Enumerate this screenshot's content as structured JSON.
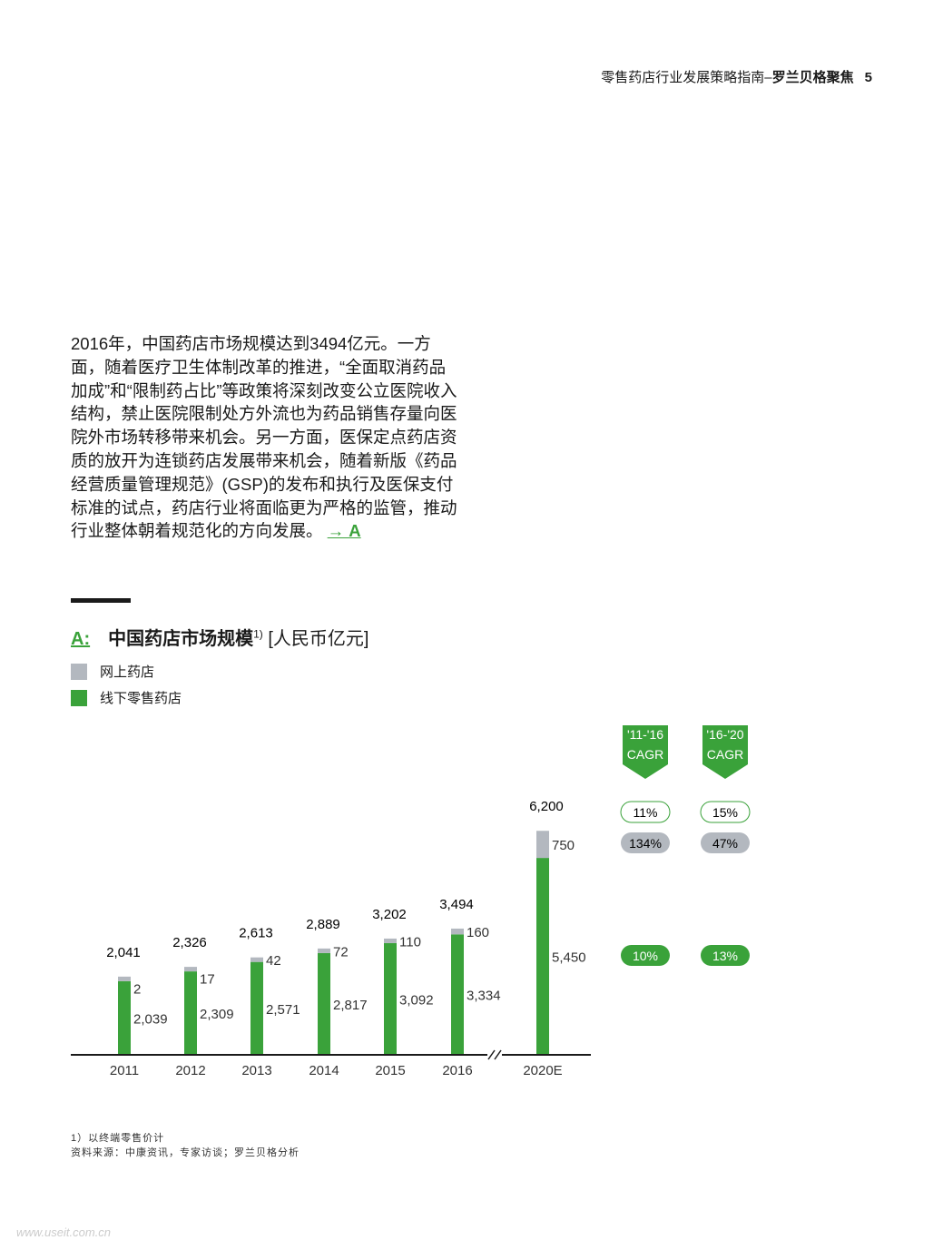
{
  "header": {
    "title": "零售药店行业发展策略指南–",
    "brand": "罗兰贝格聚焦",
    "page_number": "5"
  },
  "body_text": "2016年，中国药店市场规模达到3494亿元。一方面，随着医疗卫生体制改革的推进，“全面取消药品加成”和“限制药占比”等政策将深刻改变公立医院收入结构，禁止医院限制处方外流也为药品销售存量向医院外市场转移带来机会。另一方面，医保定点药店资质的放开为连锁药店发展带来机会，随着新版《药品经营质量管理规范》(GSP)的发布和执行及医保支付标准的试点，药店行业将面临更为严格的监管，推动行业整体朝着规范化的方向发展。",
  "body_link": "→ A",
  "footnotes": [
    "1）以终端零售价计",
    "资料来源：中康资讯，专家访谈；罗兰贝格分析"
  ],
  "watermark": "www.useit.com.cn",
  "chart_data": {
    "type": "bar",
    "stacked": true,
    "label": "A:",
    "title": "中国药店市场规模",
    "title_sup": "1)",
    "unit": "[人民币亿元]",
    "categories": [
      "2011",
      "2012",
      "2013",
      "2014",
      "2015",
      "2016",
      "2020E"
    ],
    "series": [
      {
        "name": "线下零售药店",
        "color": "#3aa23a",
        "values": [
          2039,
          2309,
          2571,
          2817,
          3092,
          3334,
          5450
        ],
        "labels": [
          "2,039",
          "2,309",
          "2,571",
          "2,817",
          "3,092",
          "3,334",
          "5,450"
        ]
      },
      {
        "name": "网上药店",
        "color": "#b3b8bf",
        "values": [
          2,
          17,
          42,
          72,
          110,
          160,
          750
        ],
        "labels": [
          "2",
          "17",
          "42",
          "72",
          "110",
          "160",
          "750"
        ]
      }
    ],
    "totals": [
      "2,041",
      "2,326",
      "2,613",
      "2,889",
      "3,202",
      "3,494",
      "6,200"
    ],
    "axis_break_before": "2020E",
    "cagr": [
      {
        "period": "'11-'16",
        "label": "CAGR",
        "total": "11%",
        "online": "134%",
        "offline": "10%"
      },
      {
        "period": "'16-'20",
        "label": "CAGR",
        "total": "15%",
        "online": "47%",
        "offline": "13%"
      }
    ],
    "colors": {
      "accent": "#3aa23a",
      "gray": "#b3b8bf"
    }
  }
}
